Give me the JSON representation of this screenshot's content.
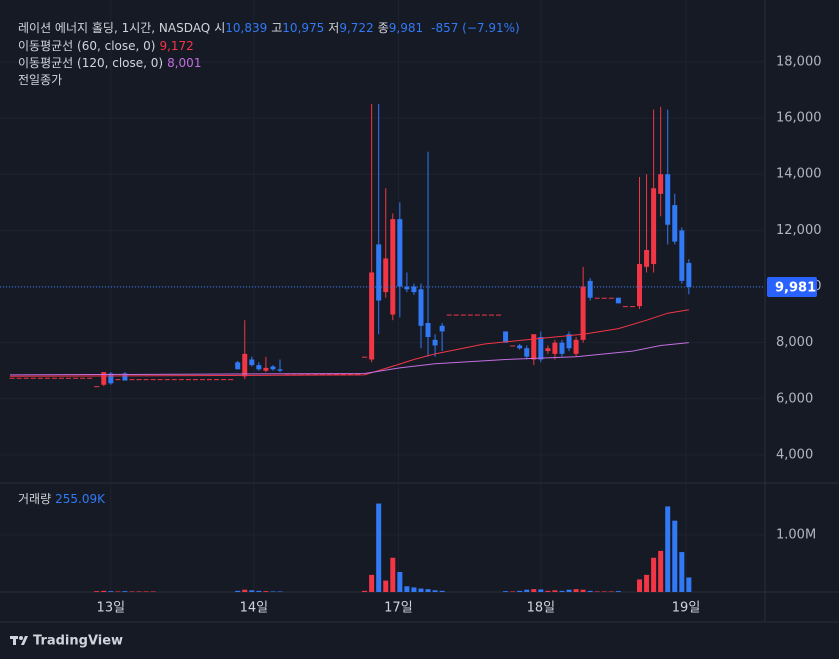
{
  "chart_data": {
    "type": "candlestick",
    "title": "레이션 에너지 홀딩, 1시간, NASDAQ",
    "ohlc_legend": [
      {
        "label": "시",
        "value": "10,839"
      },
      {
        "label": "고",
        "value": "10,975"
      },
      {
        "label": "저",
        "value": "9,722"
      },
      {
        "label": "종",
        "value": "9,981"
      }
    ],
    "change": "-857 (−7.91%)",
    "prev_close_label": "전일종가",
    "up_color": "#f23645",
    "down_color": "#3179f5",
    "x": [
      0,
      1,
      2,
      3,
      4,
      5,
      6,
      7,
      8,
      9,
      10,
      11,
      12,
      13,
      14,
      15,
      16,
      17,
      18,
      19,
      20,
      21,
      22,
      23,
      24,
      25,
      26,
      27,
      28,
      29,
      30,
      31,
      32,
      33,
      34,
      35,
      36,
      37,
      38,
      39,
      40,
      41,
      42,
      43,
      44,
      45,
      46,
      47,
      48,
      49,
      50,
      51,
      52,
      53,
      54,
      55,
      56,
      57,
      58,
      59,
      60,
      61,
      62,
      63,
      64,
      65,
      66,
      67,
      68,
      69,
      70,
      71,
      72,
      73,
      74,
      75,
      76,
      77,
      78,
      79,
      80,
      81,
      82,
      83,
      84,
      85,
      86,
      87,
      88,
      89,
      90,
      91,
      92,
      93,
      94,
      95,
      96
    ],
    "open": [
      6750,
      6750,
      6750,
      6750,
      6750,
      6750,
      6750,
      6750,
      6750,
      6750,
      6750,
      6750,
      6450,
      6500,
      6900,
      6700,
      6900,
      6700,
      6700,
      6700,
      6700,
      6700,
      6700,
      6700,
      6700,
      6700,
      6700,
      6700,
      6700,
      6700,
      6700,
      6700,
      7300,
      6800,
      7400,
      7200,
      7000,
      7150,
      7050,
      6900,
      6900,
      6900,
      6900,
      6900,
      6900,
      6900,
      6900,
      6900,
      6900,
      6900,
      7500,
      7400,
      11500,
      9800,
      9000,
      12400,
      10000,
      10000,
      9900,
      8700,
      8100,
      8600,
      9000,
      9000,
      9000,
      9000,
      9000,
      9000,
      9000,
      9000,
      8400,
      7900,
      7900,
      7800,
      7400,
      8200,
      7700,
      7600,
      8000,
      8300,
      7600,
      8100,
      10200,
      9600,
      9600,
      9600,
      9600,
      9300,
      9300,
      9300,
      10700,
      10800,
      13300,
      14000,
      12900,
      12000,
      10839
    ],
    "high": [
      6750,
      6750,
      6750,
      6750,
      6750,
      6750,
      6750,
      6750,
      6750,
      6750,
      6750,
      6750,
      6450,
      6950,
      6950,
      6700,
      6950,
      6700,
      6700,
      6700,
      6700,
      6700,
      6700,
      6700,
      6700,
      6700,
      6700,
      6700,
      6700,
      6700,
      6700,
      6700,
      7350,
      8800,
      7500,
      7300,
      7500,
      7200,
      7400,
      6900,
      6900,
      6900,
      6900,
      6900,
      6900,
      6900,
      6900,
      6900,
      6900,
      6900,
      7500,
      16500,
      16500,
      13500,
      12600,
      13000,
      10500,
      10100,
      10100,
      14800,
      8300,
      8700,
      9000,
      9000,
      9000,
      9000,
      9000,
      9000,
      9000,
      9000,
      8400,
      7900,
      7950,
      7900,
      8300,
      8400,
      7900,
      8100,
      8100,
      8400,
      8200,
      10700,
      10300,
      9600,
      9600,
      9600,
      9600,
      9300,
      9300,
      13900,
      14000,
      16300,
      16400,
      16300,
      13300,
      12100,
      10975
    ],
    "low": [
      6750,
      6750,
      6750,
      6750,
      6750,
      6750,
      6750,
      6750,
      6750,
      6750,
      6750,
      6750,
      6450,
      6450,
      6500,
      6700,
      6650,
      6700,
      6700,
      6700,
      6700,
      6700,
      6700,
      6700,
      6700,
      6700,
      6700,
      6700,
      6700,
      6700,
      6700,
      6700,
      7050,
      6700,
      7150,
      7000,
      6950,
      7000,
      6950,
      6900,
      6900,
      6900,
      6900,
      6900,
      6900,
      6900,
      6900,
      6900,
      6900,
      6900,
      7500,
      7300,
      8300,
      9600,
      8800,
      8900,
      9800,
      9700,
      7800,
      7500,
      7500,
      7700,
      9000,
      9000,
      9000,
      9000,
      9000,
      9000,
      9000,
      9000,
      8000,
      7900,
      7750,
      7400,
      7200,
      7300,
      7600,
      7400,
      7500,
      7700,
      7500,
      8000,
      9500,
      9600,
      9600,
      9600,
      9400,
      9300,
      9300,
      9200,
      10500,
      10500,
      12500,
      11500,
      11500,
      10100,
      9722
    ],
    "close": [
      6750,
      6750,
      6750,
      6750,
      6750,
      6750,
      6750,
      6750,
      6750,
      6750,
      6750,
      6750,
      6450,
      6950,
      6550,
      6700,
      6650,
      6700,
      6700,
      6700,
      6700,
      6700,
      6700,
      6700,
      6700,
      6700,
      6700,
      6700,
      6700,
      6700,
      6700,
      6700,
      7050,
      7600,
      7200,
      7050,
      7100,
      7050,
      7000,
      6900,
      6900,
      6900,
      6900,
      6900,
      6900,
      6900,
      6900,
      6900,
      6900,
      6900,
      7500,
      10500,
      9500,
      11000,
      12400,
      10000,
      9900,
      9800,
      8600,
      8200,
      7900,
      8400,
      9000,
      9000,
      9000,
      9000,
      9000,
      9000,
      9000,
      9000,
      8000,
      7900,
      7800,
      7500,
      8300,
      7400,
      7800,
      8000,
      7600,
      7800,
      8100,
      10000,
      9600,
      9600,
      9600,
      9600,
      9400,
      9300,
      9300,
      10800,
      11300,
      13500,
      14000,
      12200,
      11600,
      10200,
      9981
    ],
    "volume": [
      0,
      0,
      0,
      0,
      0,
      0,
      0,
      0,
      0,
      0,
      0,
      0,
      15000,
      20000,
      15000,
      10000,
      15000,
      10000,
      10000,
      10000,
      10000,
      0,
      0,
      0,
      0,
      0,
      0,
      0,
      0,
      0,
      0,
      0,
      20000,
      40000,
      30000,
      20000,
      15000,
      10000,
      10000,
      0,
      0,
      0,
      0,
      0,
      0,
      0,
      0,
      0,
      0,
      0,
      20000,
      300000,
      1550000,
      200000,
      600000,
      350000,
      100000,
      80000,
      60000,
      50000,
      30000,
      20000,
      0,
      0,
      0,
      0,
      0,
      0,
      0,
      0,
      15000,
      10000,
      20000,
      40000,
      50000,
      45000,
      20000,
      30000,
      20000,
      40000,
      50000,
      40000,
      20000,
      10000,
      10000,
      10000,
      15000,
      0,
      0,
      220000,
      300000,
      600000,
      720000,
      1500000,
      1250000,
      700000,
      255090
    ],
    "ma": [
      {
        "name": "이동평균선 (60, close, 0)",
        "value_label": "9,172",
        "color": "#f23645",
        "x": [
          -0.3,
          50,
          54.5,
          57,
          60,
          67,
          75,
          81,
          86,
          90,
          93,
          96
        ],
        "values": [
          6800,
          6850,
          7200,
          7400,
          7600,
          7950,
          8150,
          8300,
          8500,
          8800,
          9050,
          9172
        ]
      },
      {
        "name": "이동평균선 (120, close, 0)",
        "value_label": "8,001",
        "color": "#c36ee0",
        "x": [
          -0.3,
          50,
          55,
          60,
          70,
          80,
          88,
          92,
          96
        ],
        "values": [
          6850,
          6900,
          7100,
          7250,
          7400,
          7500,
          7700,
          7900,
          8001
        ]
      }
    ],
    "last_price": {
      "value": 9981,
      "label": "9,981"
    },
    "xlim": [
      -0.3,
      106.8
    ],
    "xticks": [
      {
        "value": 14,
        "label": "13일"
      },
      {
        "value": 34.3,
        "label": "14일"
      },
      {
        "value": 54.8,
        "label": "17일"
      },
      {
        "value": 75,
        "label": "18일"
      },
      {
        "value": 95.6,
        "label": "19일"
      }
    ],
    "ylim": [
      3000,
      19850
    ],
    "yticks": [
      {
        "value": 4000,
        "label": "4,000"
      },
      {
        "value": 6000,
        "label": "6,000"
      },
      {
        "value": 8000,
        "label": "8,000"
      },
      {
        "value": 10000,
        "label": "10,000"
      },
      {
        "value": 12000,
        "label": "12,000"
      },
      {
        "value": 14000,
        "label": "14,000"
      },
      {
        "value": 16000,
        "label": "16,000"
      },
      {
        "value": 18000,
        "label": "18,000"
      }
    ],
    "volume_label": "거래량",
    "volume_value_label": "255.09K",
    "vlim": [
      0,
      1910000
    ],
    "vticks": [
      {
        "value": 1000000,
        "label": "1.00M"
      }
    ],
    "grid": true
  },
  "branding": "TradingView"
}
